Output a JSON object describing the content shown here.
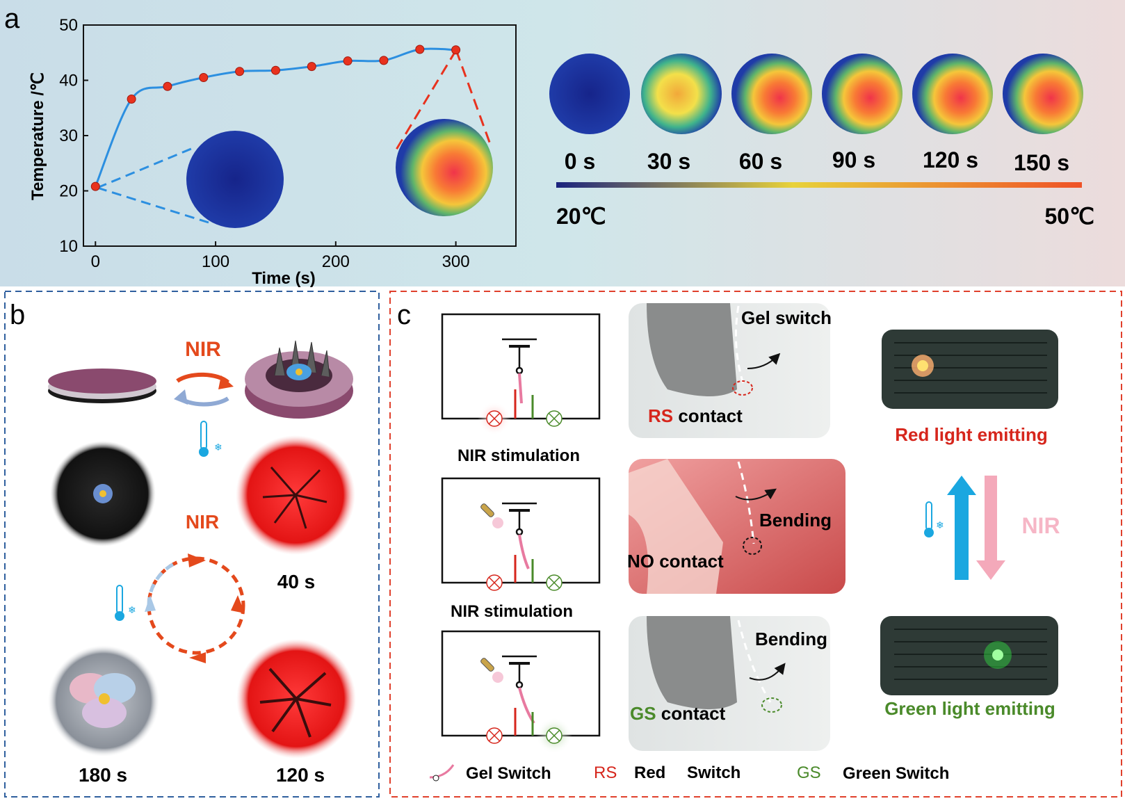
{
  "panel_a": {
    "label": "a",
    "ylabel": "Temperature /℃",
    "xlabel": "Time (s)",
    "scale_low": "20℃",
    "scale_high": "50℃",
    "snapshot_labels": [
      "0 s",
      "30 s",
      "60 s",
      "90 s",
      "120 s",
      "150 s"
    ]
  },
  "chart_data": {
    "type": "line",
    "title": "",
    "xlabel": "Time (s)",
    "ylabel": "Temperature /℃",
    "xlim": [
      -10,
      350
    ],
    "ylim": [
      10,
      50
    ],
    "xticks": [
      0,
      100,
      200,
      300
    ],
    "yticks": [
      10,
      20,
      30,
      40,
      50
    ],
    "x": [
      0,
      30,
      60,
      90,
      120,
      150,
      180,
      210,
      240,
      270,
      300
    ],
    "series": [
      {
        "values": [
          20.8,
          36.6,
          38.9,
          40.5,
          41.6,
          41.8,
          42.5,
          43.5,
          43.6,
          45.6,
          45.5
        ]
      }
    ]
  },
  "panel_b": {
    "label": "b",
    "nir_top": "NIR",
    "nir_cycle": "NIR",
    "time_labels": {
      "t40": "40 s",
      "t120": "120 s",
      "t180": "180 s"
    }
  },
  "panel_c": {
    "label": "c",
    "nir_stim_1": "NIR stimulation",
    "nir_stim_2": "NIR stimulation",
    "photo1_top": "Gel switch",
    "photo1_rs": "RS",
    "photo1_contact": " contact",
    "photo2_bending": "Bending",
    "photo2_contact": "NO contact",
    "photo3_bending": "Bending",
    "photo3_gs": "GS",
    "photo3_contact": " contact",
    "red_light": "Red light emitting",
    "green_light": "Green light emitting",
    "nir_side": "NIR",
    "legend": {
      "gel": "Gel Switch",
      "rs_abbr": "RS",
      "rs_word1": "Red",
      "rs_word2": "Switch",
      "gs_abbr": "GS",
      "gs_full": "Green Switch"
    }
  },
  "colors": {
    "curve": "#2c8fe0",
    "points": "#e8321e",
    "red": "#d6261c",
    "green": "#4a8a2a",
    "nir_orange": "#e4491c",
    "box_blue": "#2f5f9e",
    "box_red": "#e0402c",
    "box_green": "#5d8a3a"
  }
}
